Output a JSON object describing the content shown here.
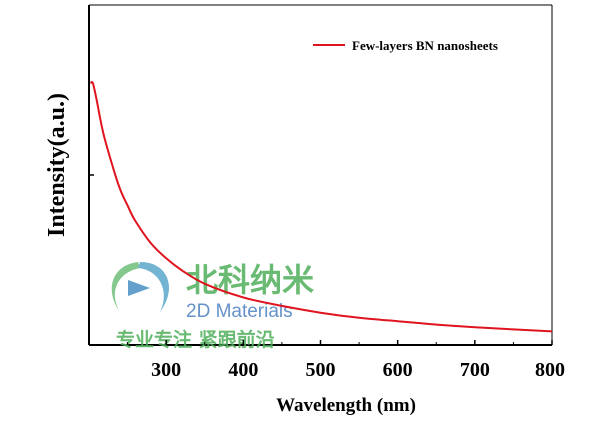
{
  "chart_data": {
    "type": "line",
    "title": "",
    "xlabel": "Wavelength (nm)",
    "ylabel": "Intensity(a.u.)",
    "xlim": [
      200,
      800
    ],
    "ylim": [
      0,
      1
    ],
    "x_ticks": [
      300,
      400,
      500,
      600,
      700,
      800
    ],
    "y_tick_labels_shown": false,
    "grid": false,
    "legend_position": "top-right",
    "series": [
      {
        "name": "Few-layers BN nanosheets",
        "color": "#e0141e",
        "x": [
          202,
          205,
          210,
          215,
          220,
          230,
          240,
          250,
          260,
          280,
          300,
          320,
          350,
          400,
          450,
          500,
          550,
          600,
          650,
          700,
          750,
          800
        ],
        "y": [
          0.77,
          0.77,
          0.72,
          0.66,
          0.61,
          0.53,
          0.46,
          0.41,
          0.365,
          0.3,
          0.255,
          0.22,
          0.18,
          0.14,
          0.115,
          0.095,
          0.08,
          0.07,
          0.06,
          0.052,
          0.046,
          0.04
        ]
      }
    ]
  },
  "watermark": {
    "cn_title": "北科纳米",
    "en_title": "2D Materials",
    "slogan": "专业专注  紧跟前沿"
  }
}
